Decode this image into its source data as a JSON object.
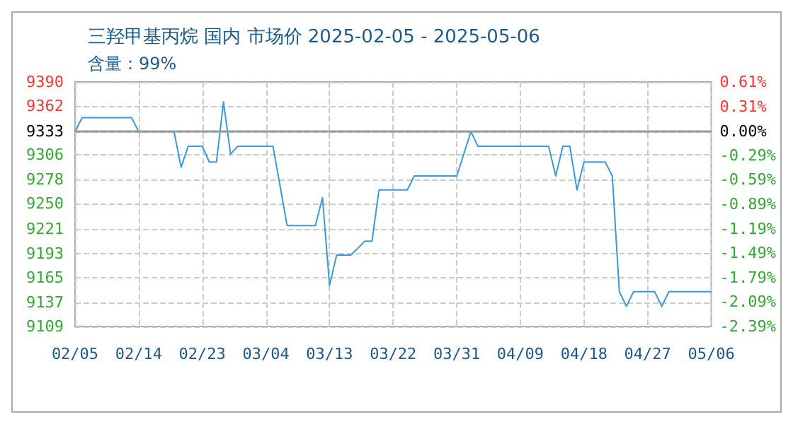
{
  "chart_data": {
    "type": "line",
    "title": "三羟甲基丙烷 国内 市场价 2025-02-05 - 2025-05-06",
    "subtitle": "含量：99%",
    "x": [
      "2025-02-05",
      "2025-02-06",
      "2025-02-13",
      "2025-02-14",
      "2025-02-19",
      "2025-02-20",
      "2025-02-21",
      "2025-02-23",
      "2025-02-24",
      "2025-02-25",
      "2025-02-26",
      "2025-02-27",
      "2025-02-28",
      "2025-03-05",
      "2025-03-07",
      "2025-03-11",
      "2025-03-12",
      "2025-03-13",
      "2025-03-14",
      "2025-03-16",
      "2025-03-18",
      "2025-03-19",
      "2025-03-20",
      "2025-03-24",
      "2025-03-25",
      "2025-03-31",
      "2025-04-02",
      "2025-04-03",
      "2025-04-13",
      "2025-04-14",
      "2025-04-15",
      "2025-04-16",
      "2025-04-17",
      "2025-04-18",
      "2025-04-21",
      "2025-04-22",
      "2025-04-23",
      "2025-04-24",
      "2025-04-25",
      "2025-04-28",
      "2025-04-29",
      "2025-04-30",
      "2025-05-06"
    ],
    "series": [
      {
        "color": "#3a9ad9",
        "values": [
          9333,
          9349,
          9349,
          9333,
          9333,
          9292,
          9316,
          9316,
          9298,
          9298,
          9367,
          9307,
          9316,
          9316,
          9225,
          9225,
          9257,
          9156,
          9191,
          9191,
          9207,
          9207,
          9266,
          9266,
          9282,
          9282,
          9333,
          9316,
          9316,
          9282,
          9316,
          9316,
          9266,
          9298,
          9298,
          9282,
          9149,
          9132,
          9149,
          9149,
          9132,
          9149,
          9149
        ]
      }
    ],
    "xlim": [
      "2025-02-05",
      "2025-05-06"
    ],
    "xticks": [
      {
        "value": "2025-02-05",
        "label": "02/05"
      },
      {
        "value": "2025-02-14",
        "label": "02/14"
      },
      {
        "value": "2025-02-23",
        "label": "02/23"
      },
      {
        "value": "2025-03-04",
        "label": "03/04"
      },
      {
        "value": "2025-03-13",
        "label": "03/13"
      },
      {
        "value": "2025-03-22",
        "label": "03/22"
      },
      {
        "value": "2025-03-31",
        "label": "03/31"
      },
      {
        "value": "2025-04-09",
        "label": "04/09"
      },
      {
        "value": "2025-04-18",
        "label": "04/18"
      },
      {
        "value": "2025-04-27",
        "label": "04/27"
      },
      {
        "value": "2025-05-06",
        "label": "05/06"
      }
    ],
    "ylim": [
      9109,
      9390
    ],
    "yticks": [
      9109,
      9137,
      9165,
      9193,
      9221,
      9250,
      9278,
      9306,
      9333,
      9362,
      9390
    ],
    "y2lim": [
      -2.39,
      0.61
    ],
    "y2ticks": [
      {
        "value": -2.39,
        "label": "-2.39%"
      },
      {
        "value": -2.09,
        "label": "-2.09%"
      },
      {
        "value": -1.79,
        "label": "-1.79%"
      },
      {
        "value": -1.49,
        "label": "-1.49%"
      },
      {
        "value": -1.19,
        "label": "-1.19%"
      },
      {
        "value": -0.89,
        "label": "-0.89%"
      },
      {
        "value": -0.59,
        "label": "-0.59%"
      },
      {
        "value": -0.29,
        "label": "-0.29%"
      },
      {
        "value": 0,
        "label": "0.00%"
      },
      {
        "value": 0.31,
        "label": "0.31%"
      },
      {
        "value": 0.61,
        "label": "0.61%"
      }
    ],
    "ref_lines": [
      {
        "axis": "y",
        "value": 9333,
        "color": "#999999"
      }
    ],
    "grid": true,
    "marker": "none",
    "line_style": "solid"
  }
}
